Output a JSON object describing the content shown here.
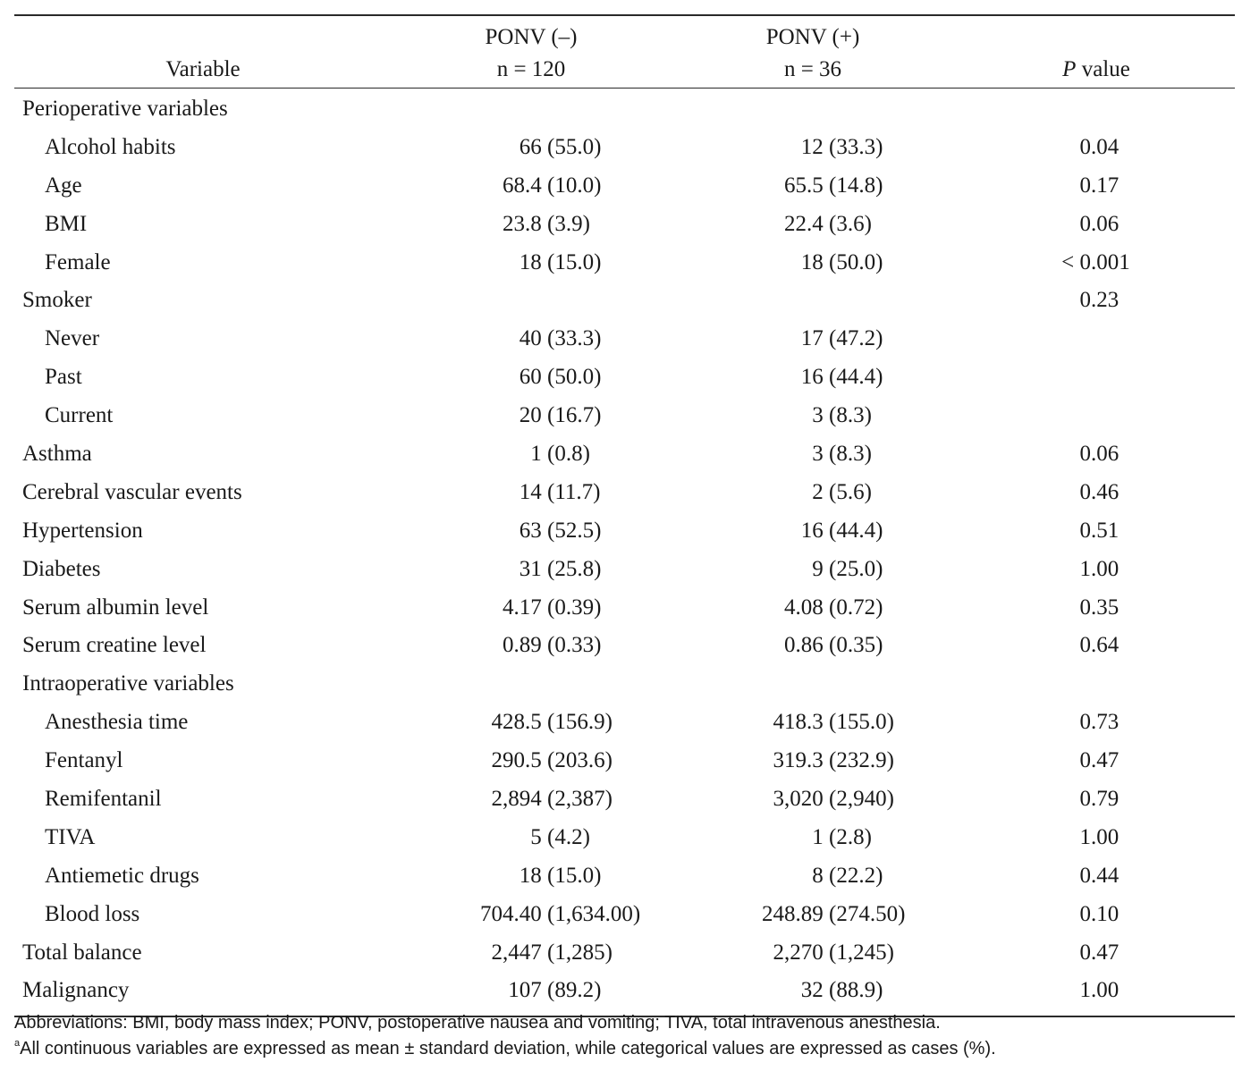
{
  "header": {
    "variable": "Variable",
    "col1_title": "PONV (–)",
    "col1_n": "n = 120",
    "col2_title": "PONV (+)",
    "col2_n": "n = 36",
    "p_italic": "P",
    "p_rest": " value"
  },
  "rows": [
    {
      "label": "Perioperative variables",
      "v1": "",
      "v2": "",
      "p": ""
    },
    {
      "label": "Alcohol habits",
      "v1": "66 (55.0)",
      "v2": "12 (33.3)",
      "p": "0.04"
    },
    {
      "label": "Age",
      "v1": "68.4 (10.0)",
      "v2": "65.5 (14.8)",
      "p": "0.17"
    },
    {
      "label": "BMI",
      "v1": "23.8 (3.9)",
      "v2": "22.4 (3.6)",
      "p": "0.06"
    },
    {
      "label": "Female",
      "v1": "18 (15.0)",
      "v2": "18 (50.0)",
      "p": "< 0.001"
    },
    {
      "label": "Smoker",
      "v1": "",
      "v2": "",
      "p": "0.23"
    },
    {
      "label": "Never",
      "v1": "40 (33.3)",
      "v2": "17 (47.2)",
      "p": ""
    },
    {
      "label": "Past",
      "v1": "60 (50.0)",
      "v2": "16 (44.4)",
      "p": ""
    },
    {
      "label": "Current",
      "v1": "20 (16.7)",
      "v2": "3 (8.3)",
      "p": ""
    },
    {
      "label": "Asthma",
      "v1": "1 (0.8)",
      "v2": "3 (8.3)",
      "p": "0.06"
    },
    {
      "label": "Cerebral vascular events",
      "v1": "14 (11.7)",
      "v2": "2 (5.6)",
      "p": "0.46"
    },
    {
      "label": "Hypertension",
      "v1": "63 (52.5)",
      "v2": "16 (44.4)",
      "p": "0.51"
    },
    {
      "label": "Diabetes",
      "v1": "31 (25.8)",
      "v2": "9 (25.0)",
      "p": "1.00"
    },
    {
      "label": "Serum albumin level",
      "v1": "4.17 (0.39)",
      "v2": "4.08 (0.72)",
      "p": "0.35"
    },
    {
      "label": "Serum creatine level",
      "v1": "0.89 (0.33)",
      "v2": "0.86 (0.35)",
      "p": "0.64"
    },
    {
      "label": "Intraoperative variables",
      "v1": "",
      "v2": "",
      "p": ""
    },
    {
      "label": "Anesthesia time",
      "v1": "428.5 (156.9)",
      "v2": "418.3 (155.0)",
      "p": "0.73"
    },
    {
      "label": "Fentanyl",
      "v1": "290.5 (203.6)",
      "v2": "319.3 (232.9)",
      "p": "0.47"
    },
    {
      "label": "Remifentanil",
      "v1": "2,894 (2,387)",
      "v2": "3,020 (2,940)",
      "p": "0.79"
    },
    {
      "label": "TIVA",
      "v1": "5 (4.2)",
      "v2": "1 (2.8)",
      "p": "1.00"
    },
    {
      "label": "Antiemetic drugs",
      "v1": "18 (15.0)",
      "v2": "8 (22.2)",
      "p": "0.44"
    },
    {
      "label": "Blood loss",
      "v1": "704.40 (1,634.00)",
      "v2": "248.89 (274.50)",
      "p": "0.10"
    },
    {
      "label": "Total balance",
      "v1": "2,447 (1,285)",
      "v2": "2,270 (1,245)",
      "p": "0.47"
    },
    {
      "label": "Malignancy",
      "v1": "107 (89.2)",
      "v2": "32 (88.9)",
      "p": "1.00"
    }
  ],
  "footnotes": {
    "abbreviations": "Abbreviations: BMI, body mass index; PONV, postoperative nausea and vomiting; TIVA, total intravenous anesthesia.",
    "a_marker": "a",
    "a_text": "All continuous variables are expressed as mean ± standard deviation, while categorical values are expressed as cases (%)."
  }
}
